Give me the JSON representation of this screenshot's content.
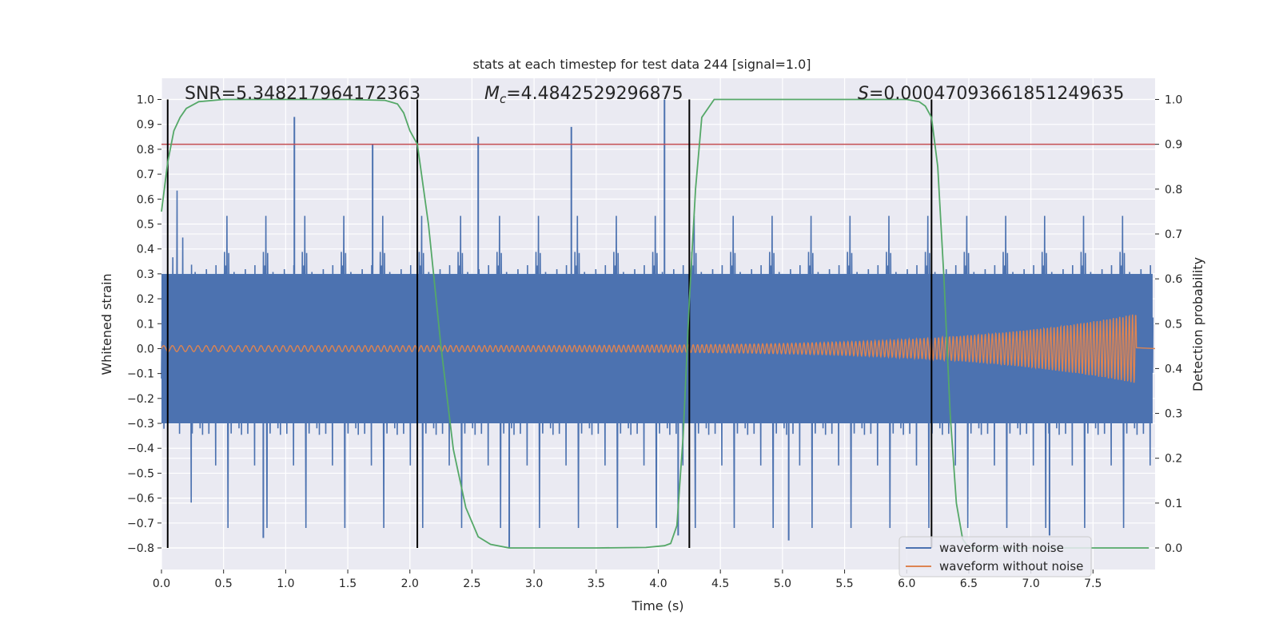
{
  "chart_data": {
    "type": "line",
    "title": "stats at each timestep for test data 244 [signal=1.0]",
    "xlabel": "Time (s)",
    "ylabel": "Whitened strain",
    "y2label": "Detection probability",
    "xlim": [
      0.0,
      8.0
    ],
    "ylim": [
      -0.8,
      1.0
    ],
    "y2lim": [
      0.0,
      1.0
    ],
    "x_ticks": [
      0.0,
      0.5,
      1.0,
      1.5,
      2.0,
      2.5,
      3.0,
      3.5,
      4.0,
      4.5,
      5.0,
      5.5,
      6.0,
      6.5,
      7.0,
      7.5
    ],
    "y_ticks": [
      -0.8,
      -0.7,
      -0.6,
      -0.5,
      -0.4,
      -0.3,
      -0.2,
      -0.1,
      0.0,
      0.1,
      0.2,
      0.3,
      0.4,
      0.5,
      0.6,
      0.7,
      0.8,
      0.9,
      1.0
    ],
    "y2_ticks": [
      0.0,
      0.1,
      0.2,
      0.3,
      0.4,
      0.5,
      0.6,
      0.7,
      0.8,
      0.9,
      1.0
    ],
    "annotations": {
      "snr": {
        "label": "SNR=5.348217964172363"
      },
      "mc": {
        "label_main": "M",
        "label_sub": "c",
        "label_rest": "=4.4842529296875"
      },
      "s": {
        "label_main": "S",
        "label_rest": "=0.00047093661851249635"
      }
    },
    "threshold": {
      "y2": 0.9,
      "color": "#c44e52"
    },
    "vertical_lines": [
      0.05,
      2.06,
      4.25,
      6.2
    ],
    "series": [
      {
        "name": "waveform with noise",
        "color": "#4c72b0",
        "style": "dense noise",
        "typical_envelope": [
          -0.3,
          0.3
        ],
        "peaks": [
          {
            "x": 1.07,
            "y": 0.93
          },
          {
            "x": 1.7,
            "y": 0.82
          },
          {
            "x": 3.3,
            "y": 0.89
          },
          {
            "x": 4.05,
            "y": 1.0
          },
          {
            "x": 2.55,
            "y": 0.85
          },
          {
            "x": 2.8,
            "y": -0.8
          },
          {
            "x": 0.82,
            "y": -0.76
          },
          {
            "x": 4.16,
            "y": -0.75
          },
          {
            "x": 5.05,
            "y": -0.77
          },
          {
            "x": 7.15,
            "y": -0.75
          }
        ]
      },
      {
        "name": "waveform without noise",
        "color": "#dd8452",
        "style": "chirp",
        "amplitude_start": 0.012,
        "amplitude_end": 0.14,
        "end_x": 7.85
      },
      {
        "name": "detection probability",
        "axis": "y2",
        "color": "#55a868",
        "x": [
          0.0,
          0.05,
          0.1,
          0.15,
          0.2,
          0.3,
          0.5,
          1.0,
          1.5,
          1.8,
          1.9,
          1.95,
          2.0,
          2.06,
          2.15,
          2.25,
          2.35,
          2.45,
          2.55,
          2.65,
          2.8,
          3.5,
          3.9,
          4.05,
          4.1,
          4.15,
          4.2,
          4.25,
          4.3,
          4.35,
          4.45,
          5.0,
          5.5,
          6.0,
          6.1,
          6.15,
          6.2,
          6.25,
          6.3,
          6.35,
          6.4,
          6.45,
          6.5,
          7.0,
          7.5,
          7.95
        ],
        "y": [
          0.75,
          0.86,
          0.93,
          0.96,
          0.98,
          0.995,
          1.0,
          1.0,
          1.0,
          0.998,
          0.99,
          0.97,
          0.93,
          0.9,
          0.72,
          0.45,
          0.22,
          0.09,
          0.025,
          0.008,
          0.0,
          0.0,
          0.001,
          0.005,
          0.01,
          0.05,
          0.25,
          0.55,
          0.8,
          0.96,
          1.0,
          1.0,
          1.0,
          1.0,
          0.995,
          0.985,
          0.96,
          0.85,
          0.6,
          0.3,
          0.1,
          0.02,
          0.0,
          0.0,
          0.0,
          0.0
        ]
      }
    ],
    "legend": {
      "placement": "lower-right",
      "entries": [
        "waveform with noise",
        "waveform without noise"
      ]
    },
    "grid": true,
    "background": "#eaeaf2"
  }
}
